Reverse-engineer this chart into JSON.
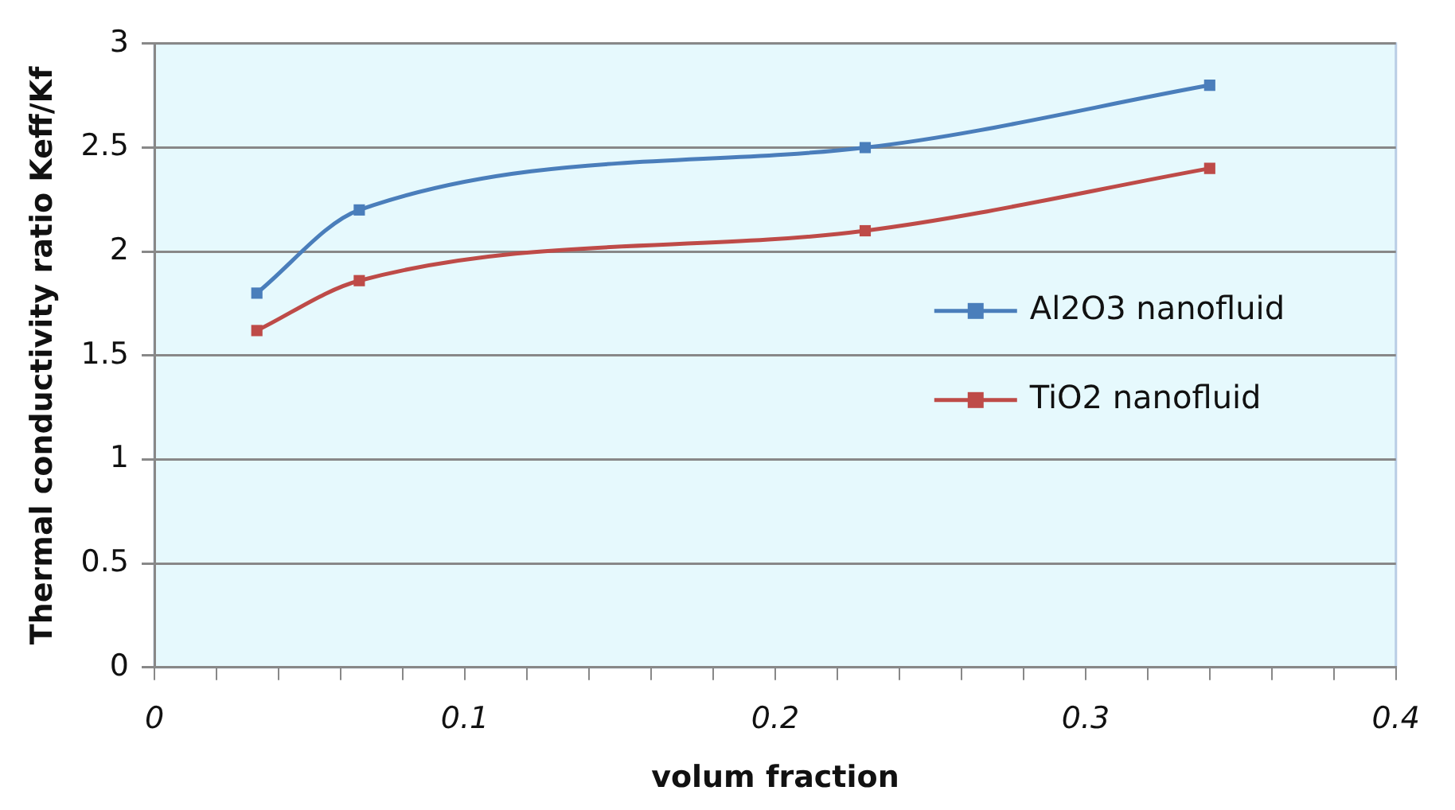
{
  "chart_data": {
    "type": "line",
    "xlabel": "volum fraction",
    "ylabel": "Thermal conductivity ratio Keff/Kf",
    "xlim": [
      0,
      0.4
    ],
    "xticks": [
      0,
      {
        "value": 0.02,
        "label": null
      },
      {
        "value": 0.04,
        "label": null
      },
      {
        "value": 0.06,
        "label": null
      },
      {
        "value": 0.08,
        "label": null
      },
      0.1,
      {
        "value": 0.12,
        "label": null
      },
      {
        "value": 0.14,
        "label": null
      },
      {
        "value": 0.16,
        "label": null
      },
      {
        "value": 0.18,
        "label": null
      },
      0.2,
      {
        "value": 0.22,
        "label": null
      },
      {
        "value": 0.24,
        "label": null
      },
      {
        "value": 0.26,
        "label": null
      },
      {
        "value": 0.28,
        "label": null
      },
      0.3,
      {
        "value": 0.32,
        "label": null
      },
      {
        "value": 0.34,
        "label": null
      },
      {
        "value": 0.36,
        "label": null
      },
      {
        "value": 0.38,
        "label": null
      },
      0.4
    ],
    "ylim": [
      0,
      3
    ],
    "yticks": [
      0,
      0.5,
      1,
      1.5,
      2,
      2.5,
      3
    ],
    "grid": "y",
    "legend": "right",
    "marker": "square",
    "line_style": "solid",
    "series": [
      {
        "name": "Al2O3 nanofluid",
        "color": "#4a7ebb",
        "x": [
          0.033,
          0.066,
          0.229,
          0.34
        ],
        "values": [
          1.8,
          2.2,
          2.5,
          2.8
        ]
      },
      {
        "name": "TiO2 nanofluid",
        "color": "#be4b48",
        "x": [
          0.033,
          0.066,
          0.229,
          0.34
        ],
        "values": [
          1.62,
          1.86,
          2.1,
          2.4
        ]
      }
    ]
  }
}
